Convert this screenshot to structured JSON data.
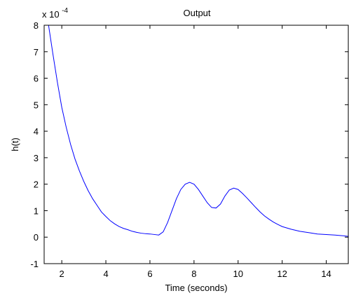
{
  "chart_data": {
    "type": "line",
    "title": "Output",
    "xlabel": "Time (seconds)",
    "ylabel": "h(t)",
    "y_scale_multiplier": {
      "base": "x 10",
      "exponent": "-4"
    },
    "xlim": [
      1.2,
      15
    ],
    "ylim": [
      -1,
      8
    ],
    "x_ticks": [
      2,
      4,
      6,
      8,
      10,
      12,
      14
    ],
    "y_ticks": [
      -1,
      0,
      1,
      2,
      3,
      4,
      5,
      6,
      7,
      8
    ],
    "grid": false,
    "series": [
      {
        "color": "#0000ff",
        "x": [
          1.2,
          1.4,
          1.6,
          1.8,
          2.0,
          2.2,
          2.4,
          2.6,
          2.8,
          3.0,
          3.2,
          3.4,
          3.6,
          3.8,
          4.0,
          4.2,
          4.4,
          4.6,
          4.8,
          5.0,
          5.2,
          5.4,
          5.6,
          5.8,
          6.0,
          6.2,
          6.4,
          6.6,
          6.8,
          7.0,
          7.2,
          7.4,
          7.6,
          7.8,
          8.0,
          8.2,
          8.4,
          8.6,
          8.8,
          9.0,
          9.2,
          9.4,
          9.6,
          9.8,
          10.0,
          10.2,
          10.4,
          10.6,
          10.8,
          11.0,
          11.2,
          11.4,
          11.6,
          11.8,
          12.0,
          12.4,
          12.8,
          13.2,
          13.6,
          14.0,
          14.4,
          14.8,
          15.0
        ],
        "y": [
          8.0,
          8.0,
          6.9,
          5.85,
          4.9,
          4.15,
          3.5,
          2.95,
          2.5,
          2.1,
          1.75,
          1.45,
          1.2,
          0.95,
          0.78,
          0.62,
          0.5,
          0.4,
          0.33,
          0.28,
          0.22,
          0.18,
          0.15,
          0.13,
          0.12,
          0.1,
          0.08,
          0.2,
          0.55,
          1.0,
          1.45,
          1.8,
          2.0,
          2.07,
          2.0,
          1.8,
          1.55,
          1.3,
          1.12,
          1.1,
          1.25,
          1.55,
          1.78,
          1.85,
          1.8,
          1.65,
          1.48,
          1.3,
          1.12,
          0.95,
          0.8,
          0.68,
          0.57,
          0.48,
          0.4,
          0.3,
          0.22,
          0.17,
          0.12,
          0.1,
          0.08,
          0.05,
          0.03
        ]
      }
    ]
  }
}
